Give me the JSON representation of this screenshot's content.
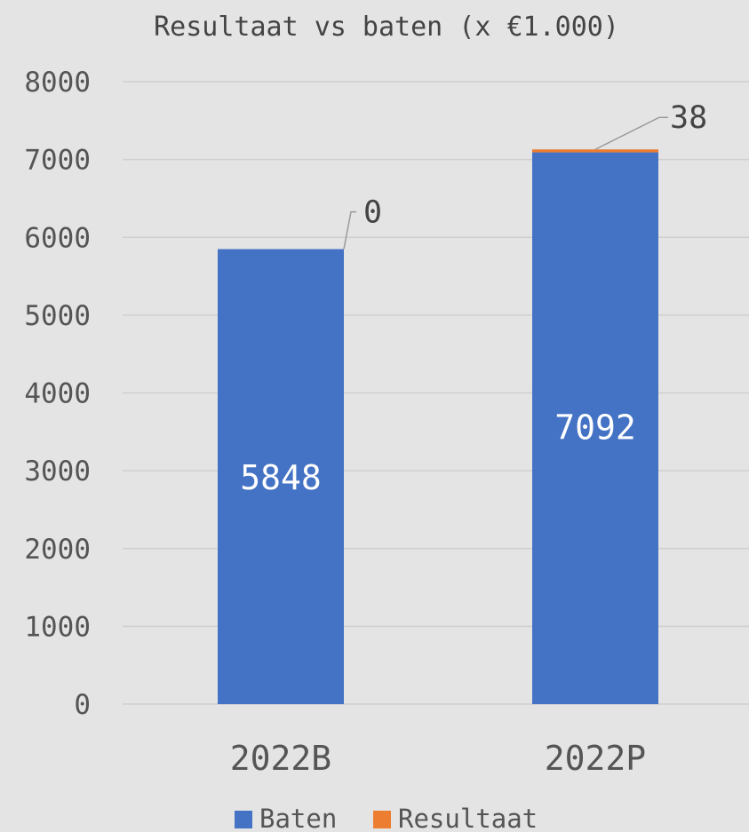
{
  "chart_data": {
    "type": "bar",
    "stacked": true,
    "title": "Resultaat vs baten (x €1.000)",
    "categories": [
      "2022B",
      "2022P"
    ],
    "series": [
      {
        "name": "Baten",
        "values": [
          5848,
          7092
        ],
        "color": "#4472C4"
      },
      {
        "name": "Resultaat",
        "values": [
          0,
          38
        ],
        "color": "#ED7D31"
      }
    ],
    "ylim": [
      0,
      8000
    ],
    "yticks": [
      "0",
      "1000",
      "2000",
      "3000",
      "4000",
      "5000",
      "6000",
      "7000",
      "8000"
    ],
    "xlabel": "",
    "ylabel": "",
    "grid": true,
    "legend": "bottom",
    "data_labels": {
      "Baten": [
        "5848",
        "7092"
      ],
      "Resultaat": [
        "0",
        "38"
      ]
    }
  }
}
